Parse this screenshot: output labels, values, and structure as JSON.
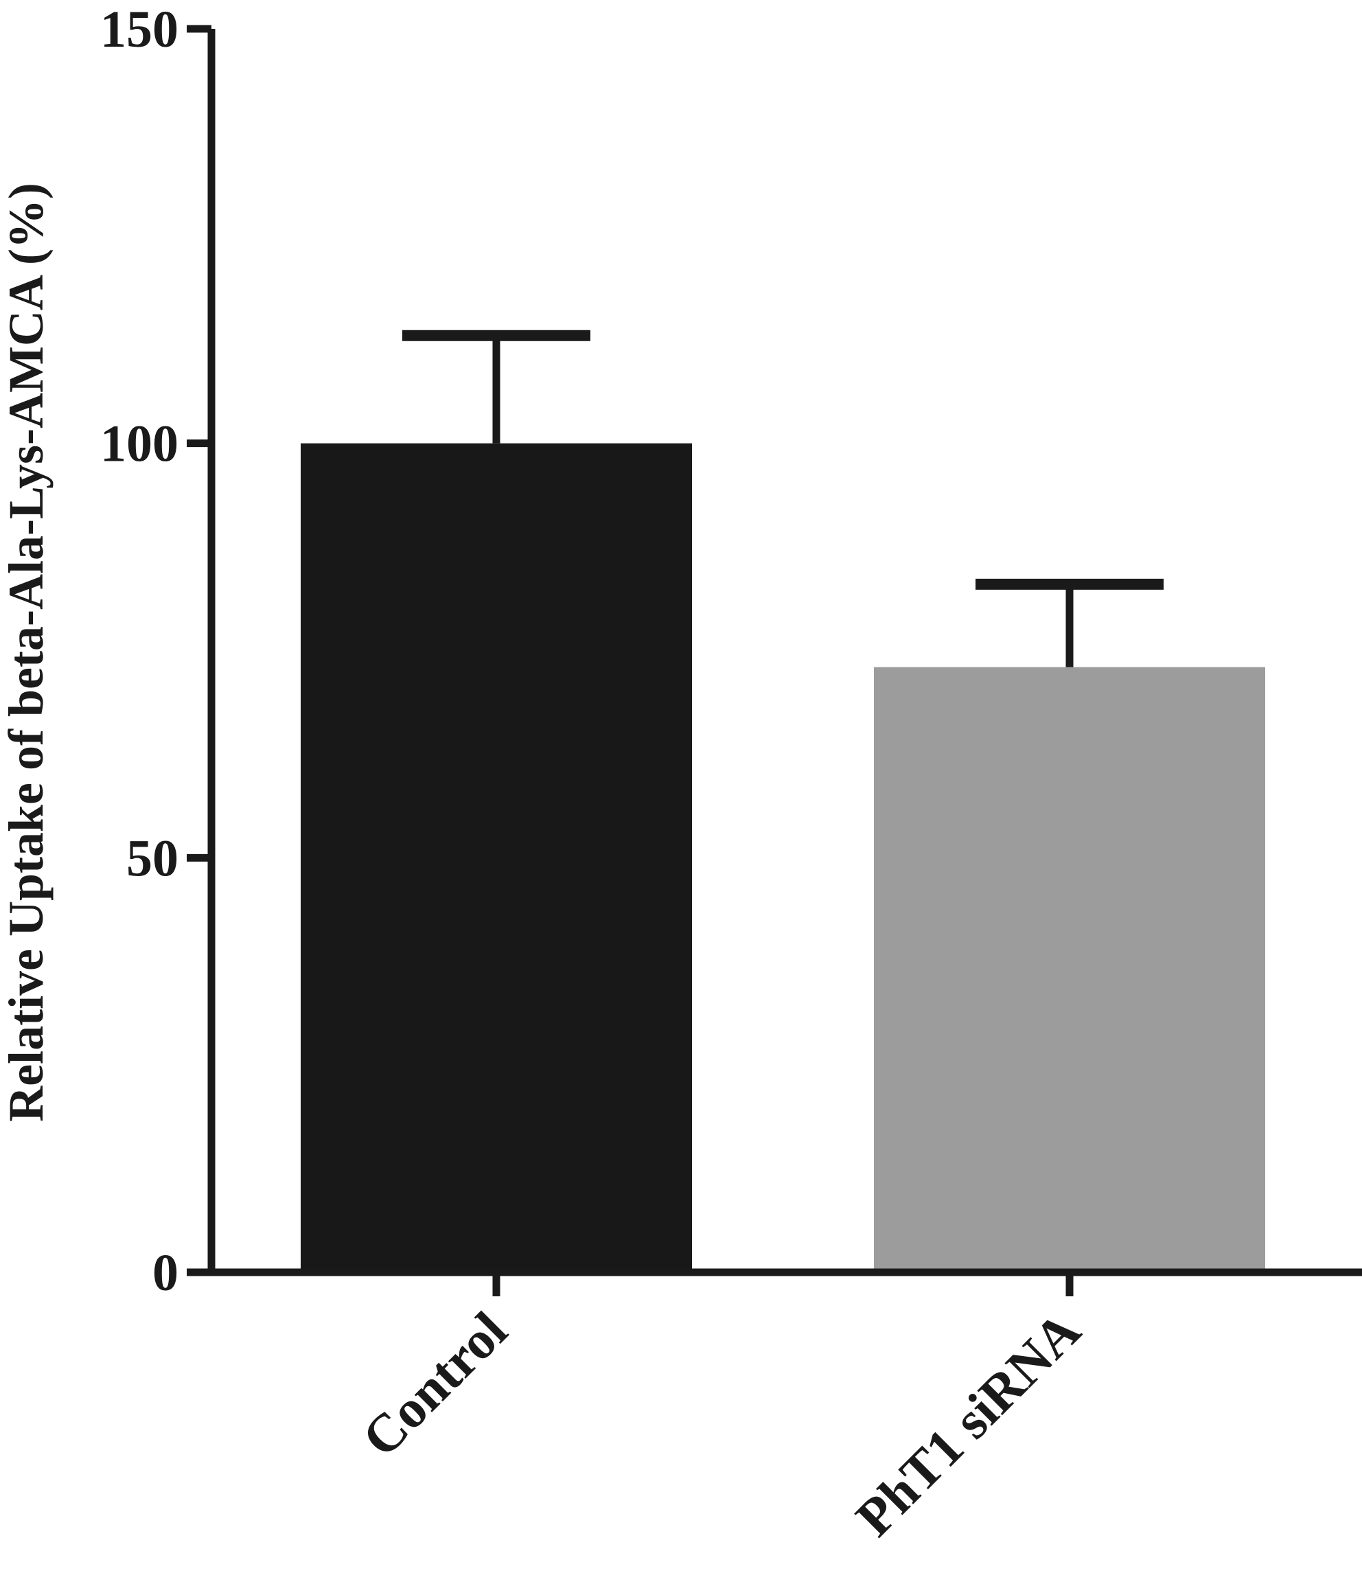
{
  "chart_data": {
    "type": "bar",
    "categories": [
      "Control",
      "PhT1 siRNA"
    ],
    "values": [
      100,
      73
    ],
    "errors": [
      13,
      10
    ],
    "colors": [
      "#181818",
      "#9c9c9c"
    ],
    "ylabel": "Relative Uptake of beta-Ala-Lys-AMCA (%)",
    "xlabel": "",
    "ylim": [
      0,
      150
    ],
    "yticks": [
      0,
      50,
      100,
      150
    ],
    "ytick_labels": [
      "0",
      "50",
      "100",
      "150"
    ],
    "grid": false,
    "axis_color": "#1a1a1a"
  }
}
